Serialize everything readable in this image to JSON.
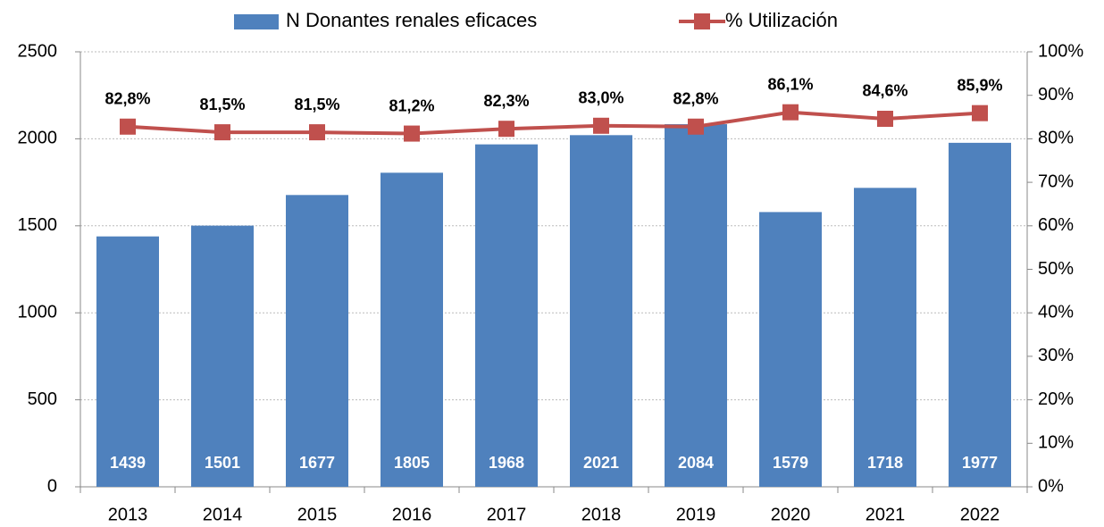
{
  "chart_data": {
    "type": "bar",
    "categories": [
      "2013",
      "2014",
      "2015",
      "2016",
      "2017",
      "2018",
      "2019",
      "2020",
      "2021",
      "2022"
    ],
    "series": [
      {
        "name": "N Donantes renales eficaces",
        "color": "#4f81bd",
        "type": "bar",
        "values": [
          1439,
          1501,
          1677,
          1805,
          1968,
          2021,
          2084,
          1579,
          1718,
          1977
        ]
      },
      {
        "name": "% Utilización",
        "color": "#c0504d",
        "type": "line",
        "axis": "y2",
        "values": [
          82.8,
          81.5,
          81.5,
          81.2,
          82.3,
          83.0,
          82.8,
          86.1,
          84.6,
          85.9
        ],
        "value_labels": [
          "82,8%",
          "81,5%",
          "81,5%",
          "81,2%",
          "82,3%",
          "83,0%",
          "82,8%",
          "86,1%",
          "84,6%",
          "85,9%"
        ]
      }
    ],
    "ylim": [
      0,
      2500
    ],
    "yticks": [
      0,
      500,
      1000,
      1500,
      2000,
      2500
    ],
    "y2lim": [
      0,
      100
    ],
    "y2ticks": [
      {
        "value": 0,
        "label": "0%"
      },
      {
        "value": 10,
        "label": "10%"
      },
      {
        "value": 20,
        "label": "20%"
      },
      {
        "value": 30,
        "label": "30%"
      },
      {
        "value": 40,
        "label": "40%"
      },
      {
        "value": 50,
        "label": "50%"
      },
      {
        "value": 60,
        "label": "60%"
      },
      {
        "value": 70,
        "label": "70%"
      },
      {
        "value": 80,
        "label": "80%"
      },
      {
        "value": 90,
        "label": "90%"
      },
      {
        "value": 100,
        "label": "100%"
      }
    ],
    "grid": true,
    "legend": "top"
  }
}
